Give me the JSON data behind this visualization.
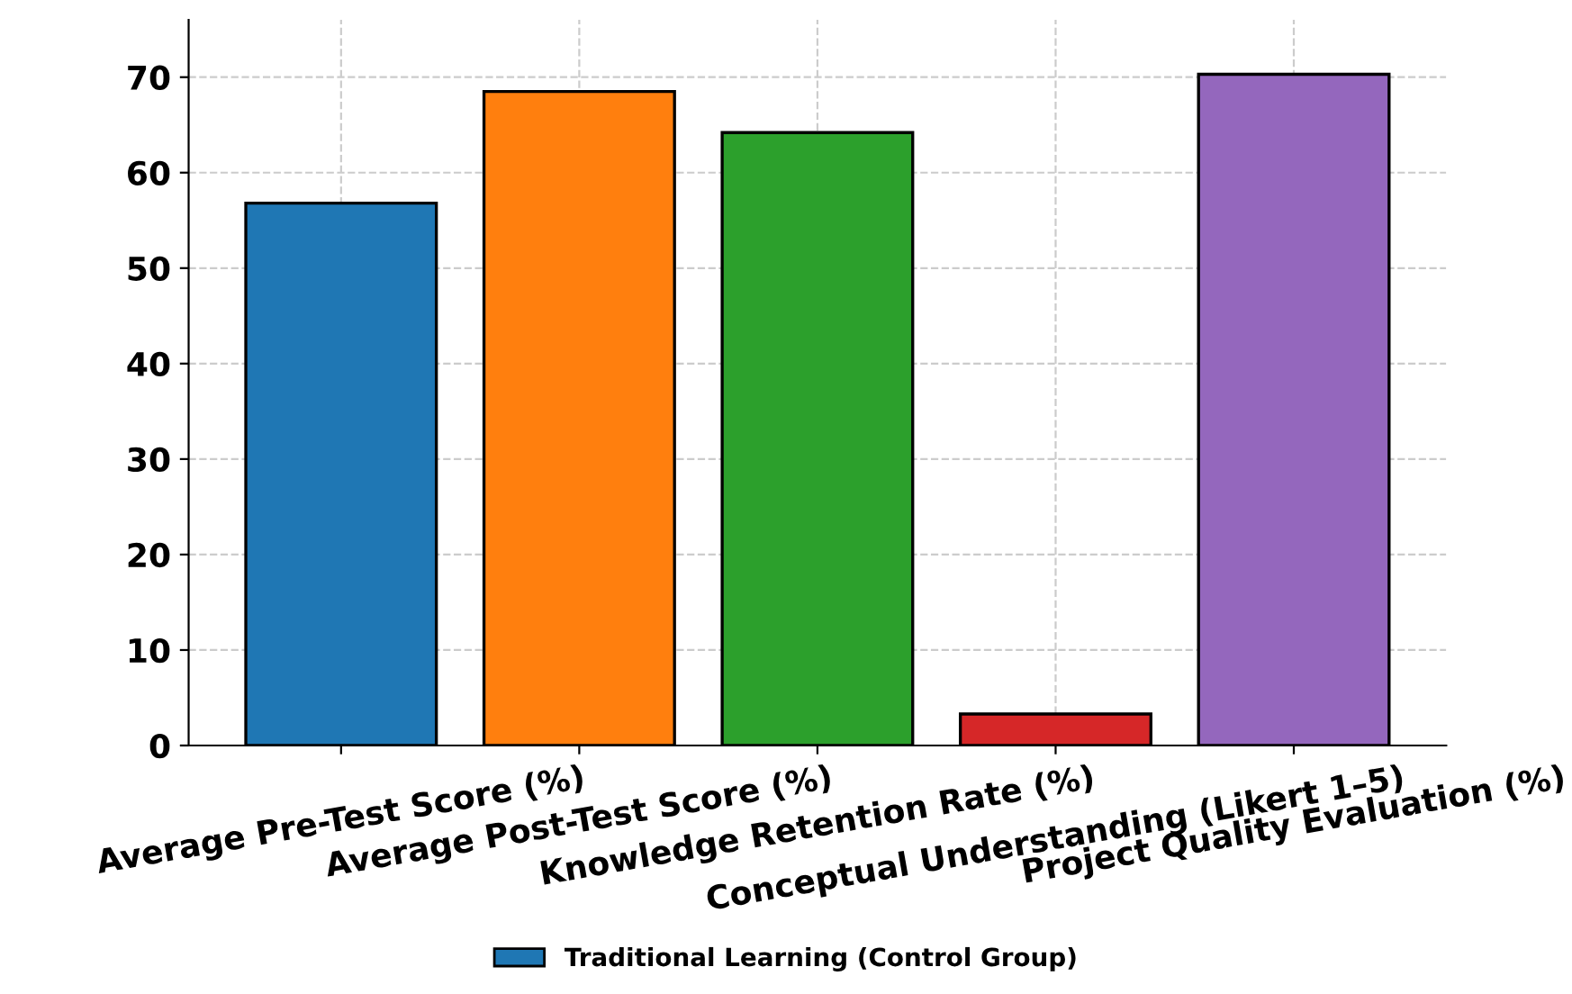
{
  "chart_data": {
    "type": "bar",
    "categories": [
      "Average Pre-Test Score (%)",
      "Average Post-Test Score (%)",
      "Knowledge Retention Rate (%)",
      "Conceptual Understanding (Likert 1–5)",
      "Project Quality Evaluation (%)"
    ],
    "series": [
      {
        "name": "Traditional Learning (Control Group)",
        "color": "#1f77b4",
        "colors": [
          "#1f77b4",
          "#ff7f0e",
          "#2ca02c",
          "#d62728",
          "#9467bd"
        ],
        "values": [
          56.8,
          68.5,
          64.2,
          3.3,
          70.3
        ]
      }
    ],
    "ylim": [
      0,
      76
    ],
    "yticks": [
      0,
      10,
      20,
      30,
      40,
      50,
      60,
      70
    ],
    "grid": true,
    "legend": "bottom"
  }
}
